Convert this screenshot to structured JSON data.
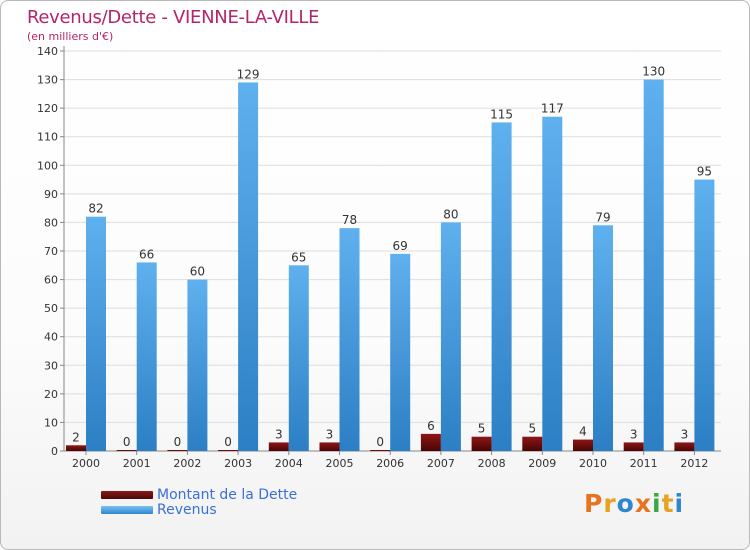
{
  "title": "Revenus/Dette - VIENNE-LA-VILLE",
  "subtitle": "(en milliers d'€)",
  "legend": {
    "debt_label": "Montant de la Dette",
    "revenue_label": "Revenus"
  },
  "logo": {
    "text": "Proxiti"
  },
  "colors": {
    "debt": "#6b0c0c",
    "revenue": "#4da3e6",
    "title": "#b4246a",
    "legend_text": "#3b6fd6"
  },
  "chart_data": {
    "type": "bar",
    "title": "Revenus/Dette - VIENNE-LA-VILLE",
    "ylabel": "(en milliers d'€)",
    "xlabel": "",
    "ylim": [
      0,
      140
    ],
    "yticks": [
      0,
      10,
      20,
      30,
      40,
      50,
      60,
      70,
      80,
      90,
      100,
      110,
      120,
      130,
      140
    ],
    "grid": true,
    "legend_position": "bottom-left",
    "categories": [
      "2000",
      "2001",
      "2002",
      "2003",
      "2004",
      "2005",
      "2006",
      "2007",
      "2008",
      "2009",
      "2010",
      "2011",
      "2012"
    ],
    "series": [
      {
        "name": "Montant de la Dette",
        "values": [
          2,
          0,
          0,
          0,
          3,
          3,
          0,
          6,
          5,
          5,
          4,
          3,
          3
        ]
      },
      {
        "name": "Revenus",
        "values": [
          82,
          66,
          60,
          129,
          65,
          78,
          69,
          80,
          115,
          117,
          79,
          130,
          95
        ]
      }
    ]
  }
}
